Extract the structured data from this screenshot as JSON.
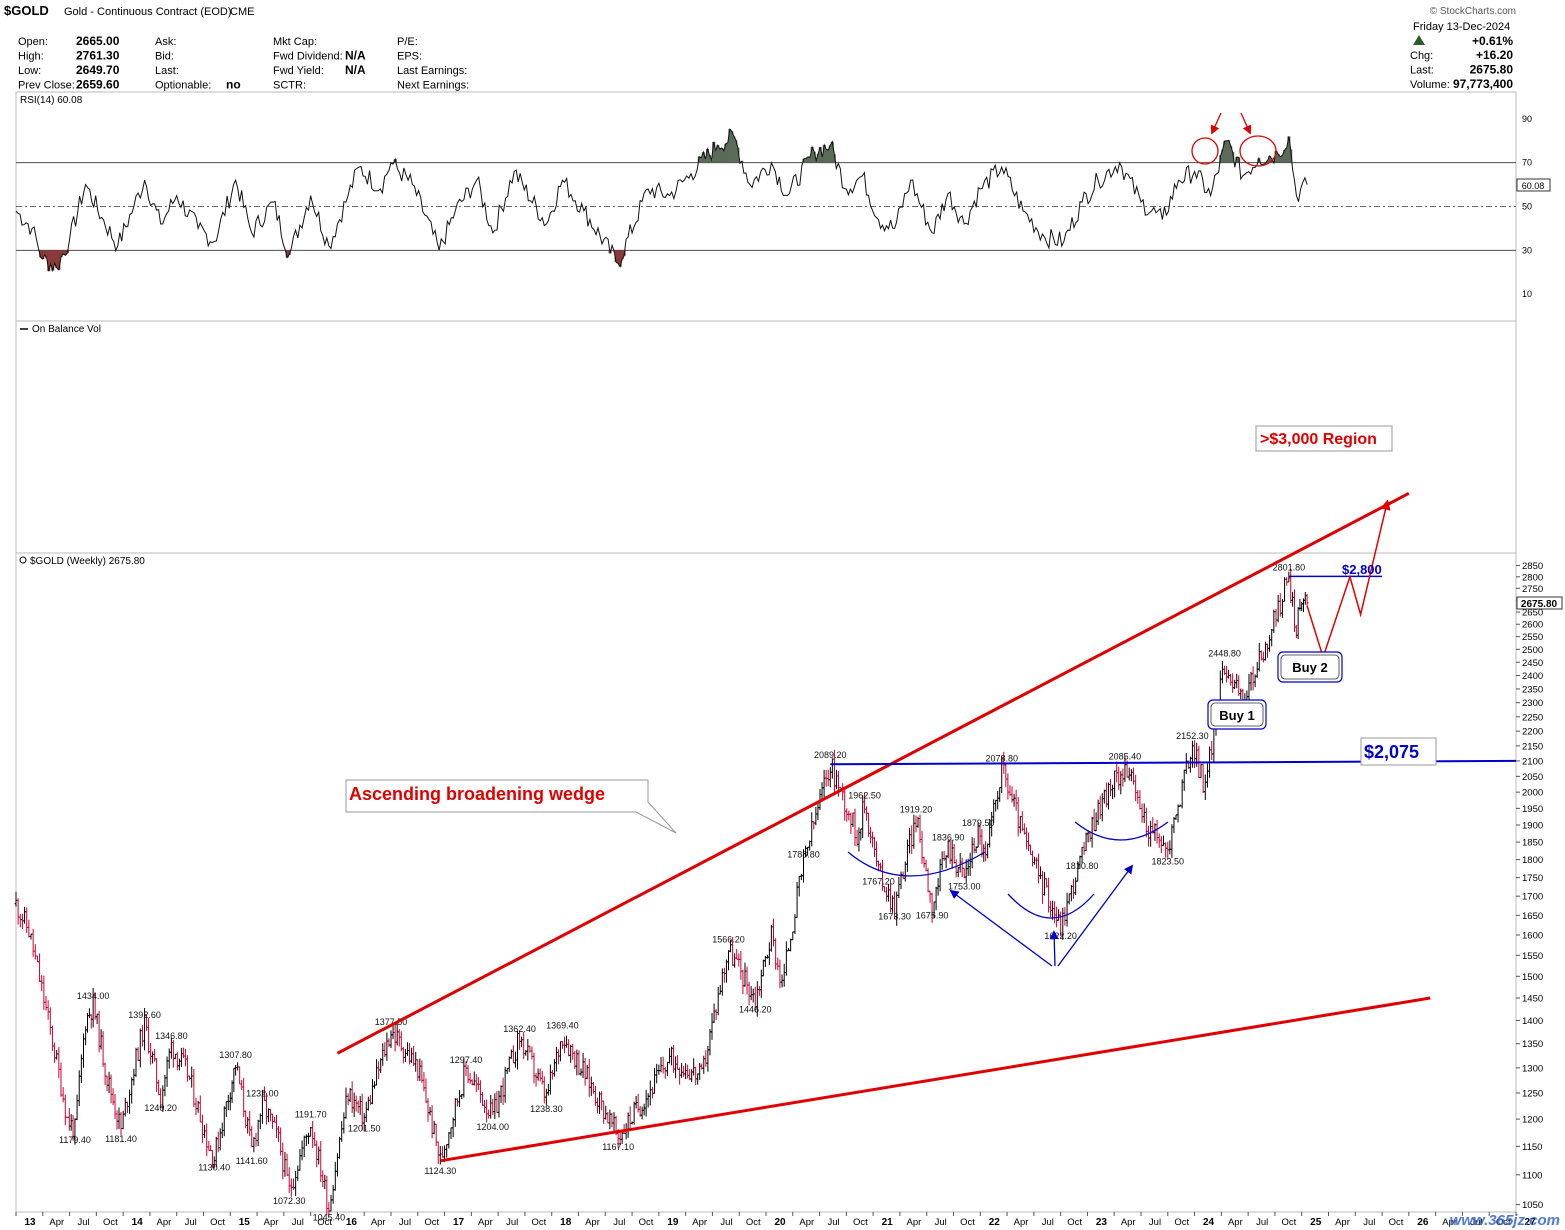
{
  "header": {
    "symbol": "$GOLD",
    "description": "Gold - Continuous Contract (EOD)",
    "exchange": "CME",
    "source": "© StockCharts.com",
    "date": "Friday 13-Dec-2024",
    "change_pct": "+0.61%",
    "fields_col1": [
      {
        "label": "Open:",
        "value": "2665.00"
      },
      {
        "label": "High:",
        "value": "2761.30"
      },
      {
        "label": "Low:",
        "value": "2649.70"
      },
      {
        "label": "Prev Close:",
        "value": "2659.60"
      }
    ],
    "fields_col2": [
      {
        "label": "Ask:",
        "value": ""
      },
      {
        "label": "Bid:",
        "value": ""
      },
      {
        "label": "Last:",
        "value": ""
      },
      {
        "label": "Optionable:",
        "value": "no"
      }
    ],
    "fields_col3": [
      {
        "label": "Mkt Cap:",
        "value": ""
      },
      {
        "label": "Fwd Dividend:",
        "value": "N/A"
      },
      {
        "label": "Fwd Yield:",
        "value": "N/A"
      },
      {
        "label": "SCTR:",
        "value": ""
      }
    ],
    "fields_col4": [
      {
        "label": "P/E:",
        "value": ""
      },
      {
        "label": "EPS:",
        "value": ""
      },
      {
        "label": "Last Earnings:",
        "value": ""
      },
      {
        "label": "Next Earnings:",
        "value": ""
      }
    ],
    "fields_right": [
      {
        "label": "Chg:",
        "value": "+16.20"
      },
      {
        "label": "Last:",
        "value": "2675.80"
      },
      {
        "label": "Volume:",
        "value": "97,773,400"
      }
    ]
  },
  "panels": {
    "rsi": {
      "label": "RSI(14) 60.08",
      "current": "60.08",
      "ticks": [
        10,
        30,
        50,
        70,
        90
      ],
      "lines": [
        30,
        50,
        70
      ]
    },
    "obv": {
      "label": "On Balance Vol"
    },
    "price": {
      "label": "$GOLD (Weekly) 2675.80",
      "current": "2675.80"
    }
  },
  "annotations": {
    "wedge": "Ascending broadening wedge",
    "target": ">$3,000 Region",
    "level_high": "$2,800",
    "level_neckline": "$2,075",
    "buy1": "Buy 1",
    "buy2": "Buy 2",
    "watermark": "www.365jz.com"
  },
  "colors": {
    "price_up": "#000000",
    "price_down": "#cc0033",
    "trend_red": "#e00000",
    "neckline_blue": "#0000cc",
    "rsi_fill": "#5a6b58",
    "rsi_low_fill": "#8b3a3a"
  },
  "chart_data": {
    "type": "line",
    "title": "$GOLD (Weekly) 2675.80",
    "y_ticks": [
      1050,
      1100,
      1150,
      1200,
      1250,
      1300,
      1350,
      1400,
      1450,
      1500,
      1550,
      1600,
      1650,
      1700,
      1750,
      1800,
      1850,
      1900,
      1950,
      2000,
      2050,
      2100,
      2150,
      2200,
      2250,
      2300,
      2350,
      2400,
      2450,
      2500,
      2550,
      2600,
      2650,
      2700,
      2750,
      2800,
      2850
    ],
    "ylim": [
      1025,
      2870
    ],
    "y_scale": "log",
    "x_range": [
      "2013-01",
      "2027-01"
    ],
    "x_ticks": [
      {
        "label": "13",
        "x": 2013.0
      },
      {
        "label": "Apr",
        "x": 2013.25
      },
      {
        "label": "Jul",
        "x": 2013.5
      },
      {
        "label": "Oct",
        "x": 2013.75
      },
      {
        "label": "14",
        "x": 2014.0
      },
      {
        "label": "Apr",
        "x": 2014.25
      },
      {
        "label": "Jul",
        "x": 2014.5
      },
      {
        "label": "Oct",
        "x": 2014.75
      },
      {
        "label": "15",
        "x": 2015.0
      },
      {
        "label": "Apr",
        "x": 2015.25
      },
      {
        "label": "Jul",
        "x": 2015.5
      },
      {
        "label": "Oct",
        "x": 2015.75
      },
      {
        "label": "16",
        "x": 2016.0
      },
      {
        "label": "Apr",
        "x": 2016.25
      },
      {
        "label": "Jul",
        "x": 2016.5
      },
      {
        "label": "Oct",
        "x": 2016.75
      },
      {
        "label": "17",
        "x": 2017.0
      },
      {
        "label": "Apr",
        "x": 2017.25
      },
      {
        "label": "Jul",
        "x": 2017.5
      },
      {
        "label": "Oct",
        "x": 2017.75
      },
      {
        "label": "18",
        "x": 2018.0
      },
      {
        "label": "Apr",
        "x": 2018.25
      },
      {
        "label": "Jul",
        "x": 2018.5
      },
      {
        "label": "Oct",
        "x": 2018.75
      },
      {
        "label": "19",
        "x": 2019.0
      },
      {
        "label": "Apr",
        "x": 2019.25
      },
      {
        "label": "Jul",
        "x": 2019.5
      },
      {
        "label": "Oct",
        "x": 2019.75
      },
      {
        "label": "20",
        "x": 2020.0
      },
      {
        "label": "Apr",
        "x": 2020.25
      },
      {
        "label": "Jul",
        "x": 2020.5
      },
      {
        "label": "Oct",
        "x": 2020.75
      },
      {
        "label": "21",
        "x": 2021.0
      },
      {
        "label": "Apr",
        "x": 2021.25
      },
      {
        "label": "Jul",
        "x": 2021.5
      },
      {
        "label": "Oct",
        "x": 2021.75
      },
      {
        "label": "22",
        "x": 2022.0
      },
      {
        "label": "Apr",
        "x": 2022.25
      },
      {
        "label": "Jul",
        "x": 2022.5
      },
      {
        "label": "Oct",
        "x": 2022.75
      },
      {
        "label": "23",
        "x": 2023.0
      },
      {
        "label": "Apr",
        "x": 2023.25
      },
      {
        "label": "Jul",
        "x": 2023.5
      },
      {
        "label": "Oct",
        "x": 2023.75
      },
      {
        "label": "24",
        "x": 2024.0
      },
      {
        "label": "Apr",
        "x": 2024.25
      },
      {
        "label": "Jul",
        "x": 2024.5
      },
      {
        "label": "Oct",
        "x": 2024.75
      },
      {
        "label": "25",
        "x": 2025.0
      },
      {
        "label": "Apr",
        "x": 2025.25
      },
      {
        "label": "Jul",
        "x": 2025.5
      },
      {
        "label": "Oct",
        "x": 2025.75
      },
      {
        "label": "26",
        "x": 2026.0
      },
      {
        "label": "Apr",
        "x": 2026.25
      },
      {
        "label": "Jul",
        "x": 2026.5
      },
      {
        "label": "Oct",
        "x": 2026.75
      },
      {
        "label": "27",
        "x": 2027.0
      }
    ],
    "price_path": [
      [
        2013.0,
        1680
      ],
      [
        2013.12,
        1610
      ],
      [
        2013.3,
        1400
      ],
      [
        2013.48,
        1200
      ],
      [
        2013.55,
        1179.4
      ],
      [
        2013.65,
        1400
      ],
      [
        2013.72,
        1434
      ],
      [
        2013.85,
        1280
      ],
      [
        2013.98,
        1181.4
      ],
      [
        2014.1,
        1300
      ],
      [
        2014.2,
        1392.6
      ],
      [
        2014.35,
        1240.2
      ],
      [
        2014.45,
        1346.8
      ],
      [
        2014.6,
        1290
      ],
      [
        2014.8,
        1150
      ],
      [
        2014.85,
        1130.4
      ],
      [
        2015.0,
        1260
      ],
      [
        2015.05,
        1307.8
      ],
      [
        2015.2,
        1141.6
      ],
      [
        2015.3,
        1232
      ],
      [
        2015.45,
        1160
      ],
      [
        2015.55,
        1072.3
      ],
      [
        2015.75,
        1191.7
      ],
      [
        2015.92,
        1045.4
      ],
      [
        2016.1,
        1250
      ],
      [
        2016.25,
        1201.5
      ],
      [
        2016.5,
        1377.5
      ],
      [
        2016.75,
        1300
      ],
      [
        2016.96,
        1124.3
      ],
      [
        2017.2,
        1297.4
      ],
      [
        2017.45,
        1204
      ],
      [
        2017.7,
        1362.4
      ],
      [
        2017.95,
        1238.3
      ],
      [
        2018.1,
        1369.4
      ],
      [
        2018.62,
        1167.1
      ],
      [
        2018.9,
        1250
      ],
      [
        2019.1,
        1320
      ],
      [
        2019.4,
        1280
      ],
      [
        2019.65,
        1566.2
      ],
      [
        2019.9,
        1446.2
      ],
      [
        2020.05,
        1600
      ],
      [
        2020.15,
        1480
      ],
      [
        2020.35,
        1788.8
      ],
      [
        2020.6,
        2089.2
      ],
      [
        2020.85,
        1870
      ],
      [
        2020.92,
        1962.5
      ],
      [
        2021.05,
        1767.2
      ],
      [
        2021.2,
        1673.3
      ],
      [
        2021.4,
        1919.2
      ],
      [
        2021.55,
        1675.9
      ],
      [
        2021.7,
        1836.9
      ],
      [
        2021.85,
        1753
      ],
      [
        2021.98,
        1879.5
      ],
      [
        2022.05,
        1800
      ],
      [
        2022.2,
        2078.8
      ],
      [
        2022.45,
        1820
      ],
      [
        2022.75,
        1622.2
      ],
      [
        2022.95,
        1810.8
      ],
      [
        2023.1,
        1950
      ],
      [
        2023.35,
        2085.4
      ],
      [
        2023.55,
        1900
      ],
      [
        2023.75,
        1823.5
      ],
      [
        2023.98,
        2152.3
      ],
      [
        2024.1,
        2010
      ],
      [
        2024.28,
        2448.8
      ],
      [
        2024.45,
        2300
      ],
      [
        2024.7,
        2550
      ],
      [
        2024.88,
        2801.8
      ],
      [
        2024.95,
        2570
      ],
      [
        2025.0,
        2720
      ],
      [
        2025.05,
        2675.8
      ]
    ],
    "rsi_path": [
      [
        2013.0,
        48
      ],
      [
        2013.15,
        40
      ],
      [
        2013.25,
        26
      ],
      [
        2013.38,
        22
      ],
      [
        2013.5,
        35
      ],
      [
        2013.65,
        60
      ],
      [
        2013.8,
        45
      ],
      [
        2013.95,
        32
      ],
      [
        2014.1,
        50
      ],
      [
        2014.2,
        62
      ],
      [
        2014.35,
        42
      ],
      [
        2014.5,
        55
      ],
      [
        2014.7,
        40
      ],
      [
        2014.85,
        34
      ],
      [
        2015.05,
        62
      ],
      [
        2015.2,
        38
      ],
      [
        2015.4,
        52
      ],
      [
        2015.55,
        28
      ],
      [
        2015.75,
        55
      ],
      [
        2015.92,
        32
      ],
      [
        2016.1,
        55
      ],
      [
        2016.2,
        68
      ],
      [
        2016.4,
        58
      ],
      [
        2016.5,
        70
      ],
      [
        2016.7,
        60
      ],
      [
        2016.95,
        30
      ],
      [
        2017.1,
        48
      ],
      [
        2017.3,
        62
      ],
      [
        2017.45,
        38
      ],
      [
        2017.65,
        66
      ],
      [
        2017.95,
        42
      ],
      [
        2018.1,
        62
      ],
      [
        2018.3,
        48
      ],
      [
        2018.62,
        24
      ],
      [
        2018.9,
        58
      ],
      [
        2019.1,
        55
      ],
      [
        2019.3,
        65
      ],
      [
        2019.55,
        78
      ],
      [
        2019.7,
        82
      ],
      [
        2019.85,
        60
      ],
      [
        2020.05,
        70
      ],
      [
        2020.2,
        55
      ],
      [
        2020.45,
        75
      ],
      [
        2020.6,
        78
      ],
      [
        2020.75,
        58
      ],
      [
        2020.9,
        64
      ],
      [
        2021.05,
        44
      ],
      [
        2021.2,
        40
      ],
      [
        2021.35,
        62
      ],
      [
        2021.55,
        38
      ],
      [
        2021.7,
        56
      ],
      [
        2021.85,
        42
      ],
      [
        2022.0,
        58
      ],
      [
        2022.2,
        68
      ],
      [
        2022.4,
        48
      ],
      [
        2022.6,
        36
      ],
      [
        2022.78,
        34
      ],
      [
        2022.95,
        52
      ],
      [
        2023.1,
        62
      ],
      [
        2023.3,
        70
      ],
      [
        2023.5,
        52
      ],
      [
        2023.7,
        44
      ],
      [
        2023.85,
        62
      ],
      [
        2024.0,
        66
      ],
      [
        2024.15,
        55
      ],
      [
        2024.3,
        80
      ],
      [
        2024.45,
        64
      ],
      [
        2024.6,
        72
      ],
      [
        2024.78,
        74
      ],
      [
        2024.88,
        82
      ],
      [
        2024.95,
        55
      ],
      [
        2025.05,
        60
      ]
    ],
    "price_labels": [
      {
        "x": 2013.55,
        "y": 1179.4,
        "text": "1179.40",
        "pos": "below"
      },
      {
        "x": 2013.72,
        "y": 1434,
        "text": "1434.00",
        "pos": "above"
      },
      {
        "x": 2013.98,
        "y": 1181.4,
        "text": "1181.40",
        "pos": "below"
      },
      {
        "x": 2014.2,
        "y": 1392.6,
        "text": "1392.60",
        "pos": "above"
      },
      {
        "x": 2014.35,
        "y": 1240.2,
        "text": "1240.20",
        "pos": "below"
      },
      {
        "x": 2014.45,
        "y": 1346.8,
        "text": "1346.80",
        "pos": "above"
      },
      {
        "x": 2014.85,
        "y": 1130.4,
        "text": "1130.40",
        "pos": "below"
      },
      {
        "x": 2015.05,
        "y": 1307.8,
        "text": "1307.80",
        "pos": "above"
      },
      {
        "x": 2015.2,
        "y": 1141.6,
        "text": "1141.60",
        "pos": "below"
      },
      {
        "x": 2015.3,
        "y": 1232,
        "text": "1232.00",
        "pos": "above"
      },
      {
        "x": 2015.55,
        "y": 1072.3,
        "text": "1072.30",
        "pos": "below"
      },
      {
        "x": 2015.75,
        "y": 1191.7,
        "text": "1191.70",
        "pos": "above"
      },
      {
        "x": 2015.92,
        "y": 1045.4,
        "text": "1045.40",
        "pos": "below"
      },
      {
        "x": 2016.25,
        "y": 1201.5,
        "text": "1201.50",
        "pos": "below"
      },
      {
        "x": 2016.5,
        "y": 1377.5,
        "text": "1377.50",
        "pos": "above"
      },
      {
        "x": 2016.96,
        "y": 1124.3,
        "text": "1124.30",
        "pos": "below"
      },
      {
        "x": 2017.2,
        "y": 1297.4,
        "text": "1297.40",
        "pos": "above"
      },
      {
        "x": 2017.45,
        "y": 1204,
        "text": "1204.00",
        "pos": "below"
      },
      {
        "x": 2017.7,
        "y": 1362.4,
        "text": "1362.40",
        "pos": "above"
      },
      {
        "x": 2017.95,
        "y": 1238.3,
        "text": "1238.30",
        "pos": "below"
      },
      {
        "x": 2018.1,
        "y": 1369.4,
        "text": "1369.40",
        "pos": "above"
      },
      {
        "x": 2018.62,
        "y": 1167.1,
        "text": "1167.10",
        "pos": "below"
      },
      {
        "x": 2019.65,
        "y": 1566.2,
        "text": "1566.20",
        "pos": "above"
      },
      {
        "x": 2019.9,
        "y": 1446.2,
        "text": "1446.20",
        "pos": "below"
      },
      {
        "x": 2020.35,
        "y": 1788.8,
        "text": "1788.80",
        "pos": "above"
      },
      {
        "x": 2020.6,
        "y": 2089.2,
        "text": "2089.20",
        "pos": "above"
      },
      {
        "x": 2020.92,
        "y": 1962.5,
        "text": "1962.50",
        "pos": "above"
      },
      {
        "x": 2021.05,
        "y": 1767.2,
        "text": "1767.20",
        "pos": "below"
      },
      {
        "x": 2021.2,
        "y": 1673.3,
        "text": "1673.30",
        "pos": "below"
      },
      {
        "x": 2021.4,
        "y": 1919.2,
        "text": "1919.20",
        "pos": "above"
      },
      {
        "x": 2021.55,
        "y": 1675.9,
        "text": "1675.90",
        "pos": "below"
      },
      {
        "x": 2021.7,
        "y": 1836.9,
        "text": "1836.90",
        "pos": "above"
      },
      {
        "x": 2021.85,
        "y": 1753,
        "text": "1753.00",
        "pos": "below"
      },
      {
        "x": 2021.98,
        "y": 1879.5,
        "text": "1879.50",
        "pos": "above"
      },
      {
        "x": 2022.2,
        "y": 2078.8,
        "text": "2078.80",
        "pos": "above"
      },
      {
        "x": 2022.75,
        "y": 1622.2,
        "text": "1622.20",
        "pos": "below"
      },
      {
        "x": 2022.95,
        "y": 1810.8,
        "text": "1810.80",
        "pos": "below"
      },
      {
        "x": 2023.35,
        "y": 2085.4,
        "text": "2085.40",
        "pos": "above"
      },
      {
        "x": 2023.75,
        "y": 1823.5,
        "text": "1823.50",
        "pos": "below"
      },
      {
        "x": 2023.98,
        "y": 2152.3,
        "text": "2152.30",
        "pos": "above"
      },
      {
        "x": 2024.28,
        "y": 2448.8,
        "text": "2448.80",
        "pos": "above"
      },
      {
        "x": 2024.88,
        "y": 2801.8,
        "text": "2801.80",
        "pos": "above"
      }
    ],
    "trendlines": {
      "wedge_upper": [
        [
          2016.0,
          1330
        ],
        [
          2026.0,
          3190
        ]
      ],
      "wedge_lower": [
        [
          2016.96,
          1124.3
        ],
        [
          2026.2,
          1450
        ]
      ],
      "neckline": [
        [
          2020.6,
          2089.2
        ],
        [
          2027.0,
          2100
        ]
      ],
      "resistance_2800": [
        [
          2024.88,
          2801.8
        ],
        [
          2025.75,
          2801.8
        ]
      ],
      "projection": [
        [
          2025.05,
          2675.8
        ],
        [
          2025.2,
          2470
        ],
        [
          2025.45,
          2800
        ],
        [
          2025.55,
          2640
        ],
        [
          2025.8,
          3150
        ]
      ]
    }
  }
}
